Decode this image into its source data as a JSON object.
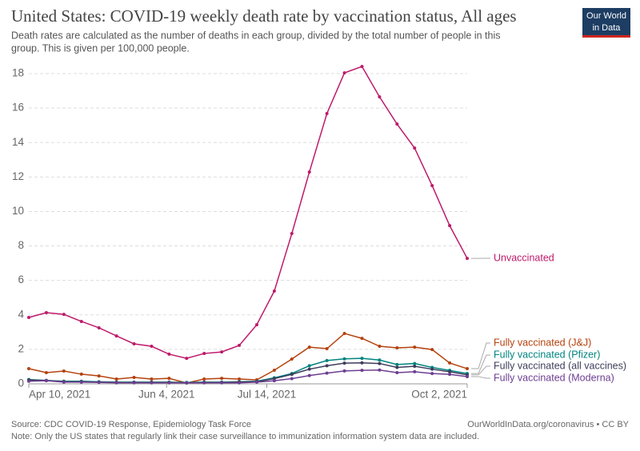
{
  "chart_data": {
    "type": "line",
    "title": "United States: COVID-19 weekly death rate by vaccination status, All ages",
    "subtitle": [
      "Death rates are calculated as the number of deaths in each group, divided by the total number of people in this",
      "group. This is given per 100,000 people."
    ],
    "logo": [
      "Our World",
      "in Data"
    ],
    "source": "Source: CDC COVID-19 Response, Epidemiology Task Force",
    "note": "Note: Only the US states that regularly link their case surveillance to immunization information system data are included.",
    "credit": "OurWorldInData.org/coronavirus • CC BY",
    "x": [
      "2021-04-10",
      "2021-04-17",
      "2021-04-24",
      "2021-05-01",
      "2021-05-08",
      "2021-05-15",
      "2021-05-22",
      "2021-05-29",
      "2021-06-05",
      "2021-06-12",
      "2021-06-19",
      "2021-06-26",
      "2021-07-03",
      "2021-07-10",
      "2021-07-17",
      "2021-07-24",
      "2021-07-31",
      "2021-08-07",
      "2021-08-14",
      "2021-08-21",
      "2021-08-28",
      "2021-09-04",
      "2021-09-11",
      "2021-09-18",
      "2021-09-25",
      "2021-10-02"
    ],
    "xlim": [
      "2021-04-10",
      "2021-10-02"
    ],
    "xticks": [
      {
        "value": "2021-04-10",
        "label": "Apr 10, 2021"
      },
      {
        "value": "2021-06-04",
        "label": "Jun 4, 2021"
      },
      {
        "value": "2021-07-14",
        "label": "Jul 14, 2021"
      },
      {
        "value": "2021-10-02",
        "label": "Oct 2, 2021"
      }
    ],
    "ylim": [
      0,
      18
    ],
    "yticks": [
      0,
      2,
      4,
      6,
      8,
      10,
      12,
      14,
      16,
      18
    ],
    "grid": true,
    "series": [
      {
        "name": "Unvaccinated",
        "color": "#be1a6a",
        "values": [
          3.85,
          4.13,
          4.03,
          3.62,
          3.25,
          2.78,
          2.32,
          2.18,
          1.72,
          1.48,
          1.76,
          1.85,
          2.23,
          3.43,
          5.38,
          8.72,
          12.29,
          15.68,
          18.04,
          18.41,
          16.65,
          15.07,
          13.68,
          11.5,
          9.18,
          7.28
        ]
      },
      {
        "name": "Fully vaccinated (J&J)",
        "color": "#b5420e",
        "values": [
          0.88,
          0.65,
          0.74,
          0.56,
          0.46,
          0.28,
          0.37,
          0.28,
          0.32,
          0.05,
          0.28,
          0.32,
          0.28,
          0.23,
          0.79,
          1.44,
          2.13,
          2.04,
          2.92,
          2.64,
          2.18,
          2.09,
          2.13,
          1.99,
          1.21,
          0.88
        ]
      },
      {
        "name": "Fully vaccinated (Pfizer)",
        "color": "#00847e",
        "values": [
          0.25,
          0.2,
          0.15,
          0.15,
          0.12,
          0.1,
          0.1,
          0.1,
          0.1,
          0.08,
          0.1,
          0.1,
          0.12,
          0.15,
          0.35,
          0.6,
          1.05,
          1.35,
          1.45,
          1.48,
          1.38,
          1.12,
          1.18,
          0.95,
          0.78,
          0.6
        ]
      },
      {
        "name": "Fully vaccinated (all vaccines)",
        "color": "#3d3d5c",
        "values": [
          0.22,
          0.2,
          0.13,
          0.12,
          0.1,
          0.08,
          0.08,
          0.08,
          0.08,
          0.06,
          0.08,
          0.08,
          0.1,
          0.13,
          0.3,
          0.55,
          0.85,
          1.05,
          1.2,
          1.22,
          1.18,
          0.95,
          1.02,
          0.85,
          0.7,
          0.52
        ]
      },
      {
        "name": "Fully vaccinated (Moderna)",
        "color": "#6d3e91",
        "values": [
          0.15,
          0.18,
          0.1,
          0.1,
          0.08,
          0.06,
          0.06,
          0.06,
          0.06,
          0.05,
          0.06,
          0.06,
          0.06,
          0.1,
          0.18,
          0.3,
          0.48,
          0.62,
          0.75,
          0.78,
          0.8,
          0.65,
          0.7,
          0.6,
          0.55,
          0.42
        ]
      }
    ]
  }
}
